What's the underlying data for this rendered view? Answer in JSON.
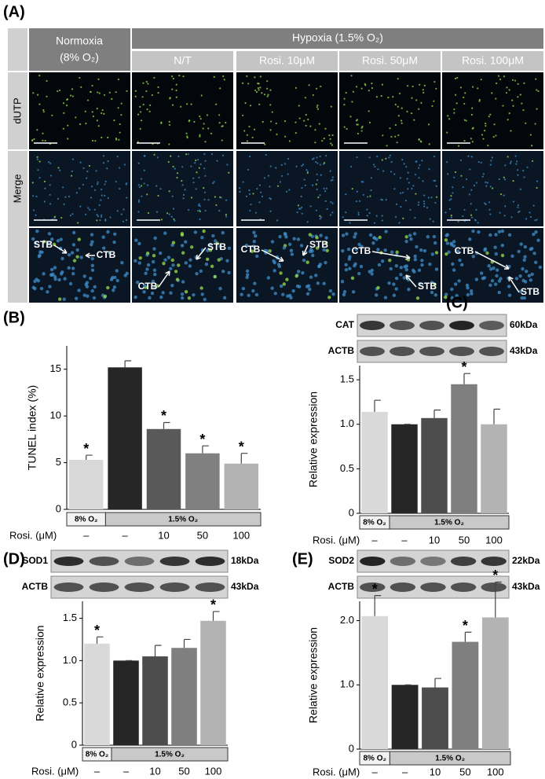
{
  "panel_a": {
    "label": "(A)",
    "normoxia": [
      "Normoxia",
      "(8% O₂)"
    ],
    "hypoxia": "Hypoxia (1.5% O₂)",
    "conditions": [
      "N/T",
      "Rosi. 10μM",
      "Rosi. 50μM",
      "Rosi. 100μM"
    ],
    "rows": [
      "dUTP",
      "Merge"
    ],
    "zoom_labels": [
      [
        "STB",
        "CTB"
      ],
      [
        "STB",
        "CTB"
      ],
      [
        "CTB",
        "STB"
      ],
      [
        "CTB",
        "STB"
      ],
      [
        "CTB",
        "STB"
      ]
    ]
  },
  "chart_data": [
    {
      "type": "bar",
      "panel_label": "(B)",
      "ylabel": "TUNEL index (%)",
      "x_label": "Rosi. (μM)",
      "categories": [
        "–",
        "–",
        "10",
        "50",
        "100"
      ],
      "groups": [
        "8% O₂",
        "1.5% O₂"
      ],
      "values": [
        5.3,
        15.2,
        8.6,
        6.0,
        4.9
      ],
      "errors": [
        0.5,
        0.7,
        0.7,
        0.8,
        1.1
      ],
      "significance": [
        "*",
        null,
        "*",
        "*",
        "*"
      ],
      "colors": [
        "#d9d9d9",
        "#262626",
        "#595959",
        "#808080",
        "#b3b3b3"
      ],
      "ylim": [
        0,
        17.5
      ],
      "yticks": [
        0,
        5,
        10,
        15
      ],
      "blots": []
    },
    {
      "type": "bar",
      "panel_label": "(C)",
      "ylabel": "Relative expression",
      "x_label": "Rosi. (μM)",
      "categories": [
        "–",
        "–",
        "10",
        "50",
        "100"
      ],
      "groups": [
        "8% O₂",
        "1.5% O₂"
      ],
      "values": [
        1.14,
        1.0,
        1.07,
        1.45,
        1.0
      ],
      "errors": [
        0.13,
        0,
        0.09,
        0.12,
        0.17
      ],
      "significance": [
        null,
        null,
        null,
        "*",
        null
      ],
      "colors": [
        "#d9d9d9",
        "#262626",
        "#4d4d4d",
        "#7f7f7f",
        "#b3b3b3"
      ],
      "ylim": [
        0,
        1.66
      ],
      "yticks": [
        0,
        0.5,
        {
          "value": 1,
          "label": "1.0"
        },
        1.5
      ],
      "blots": [
        {
          "protein": "CAT",
          "size": "60kDa"
        },
        {
          "protein": "ACTB",
          "size": "43kDa"
        }
      ]
    },
    {
      "type": "bar",
      "panel_label": "(D)",
      "ylabel": "Relative expression",
      "x_label": "Rosi. (μM)",
      "categories": [
        "–",
        "–",
        "10",
        "50",
        "100"
      ],
      "groups": [
        "8% O₂",
        "1.5% O₂"
      ],
      "values": [
        1.2,
        1.0,
        1.05,
        1.15,
        1.47
      ],
      "errors": [
        0.08,
        0,
        0.13,
        0.1,
        0.11
      ],
      "significance": [
        "*",
        null,
        null,
        null,
        "*"
      ],
      "colors": [
        "#d9d9d9",
        "#262626",
        "#4d4d4d",
        "#7f7f7f",
        "#b3b3b3"
      ],
      "ylim": [
        0,
        1.7
      ],
      "yticks": [
        0,
        0.5,
        {
          "value": 1,
          "label": "1.0"
        },
        1.5
      ],
      "blots": [
        {
          "protein": "SOD1",
          "size": "18kDa"
        },
        {
          "protein": "ACTB",
          "size": "43kDa"
        }
      ]
    },
    {
      "type": "bar",
      "panel_label": "(E)",
      "ylabel": "Relative expression",
      "x_label": "Rosi. (μM)",
      "categories": [
        "–",
        "–",
        "10",
        "50",
        "100"
      ],
      "groups": [
        "8% O₂",
        "1.5% O₂"
      ],
      "values": [
        2.07,
        1.0,
        0.96,
        1.67,
        2.05
      ],
      "errors": [
        0.32,
        0,
        0.14,
        0.15,
        0.55
      ],
      "significance": [
        "*",
        null,
        null,
        "*",
        "*"
      ],
      "colors": [
        "#d9d9d9",
        "#262626",
        "#4d4d4d",
        "#7f7f7f",
        "#b3b3b3"
      ],
      "ylim": [
        0,
        2.3
      ],
      "yticks": [
        0,
        {
          "value": 1,
          "label": "1.0"
        },
        {
          "value": 2,
          "label": "2.0"
        }
      ],
      "blots": [
        {
          "protein": "SOD2",
          "size": "22kDa"
        },
        {
          "protein": "ACTB",
          "size": "43kDa"
        }
      ]
    }
  ]
}
